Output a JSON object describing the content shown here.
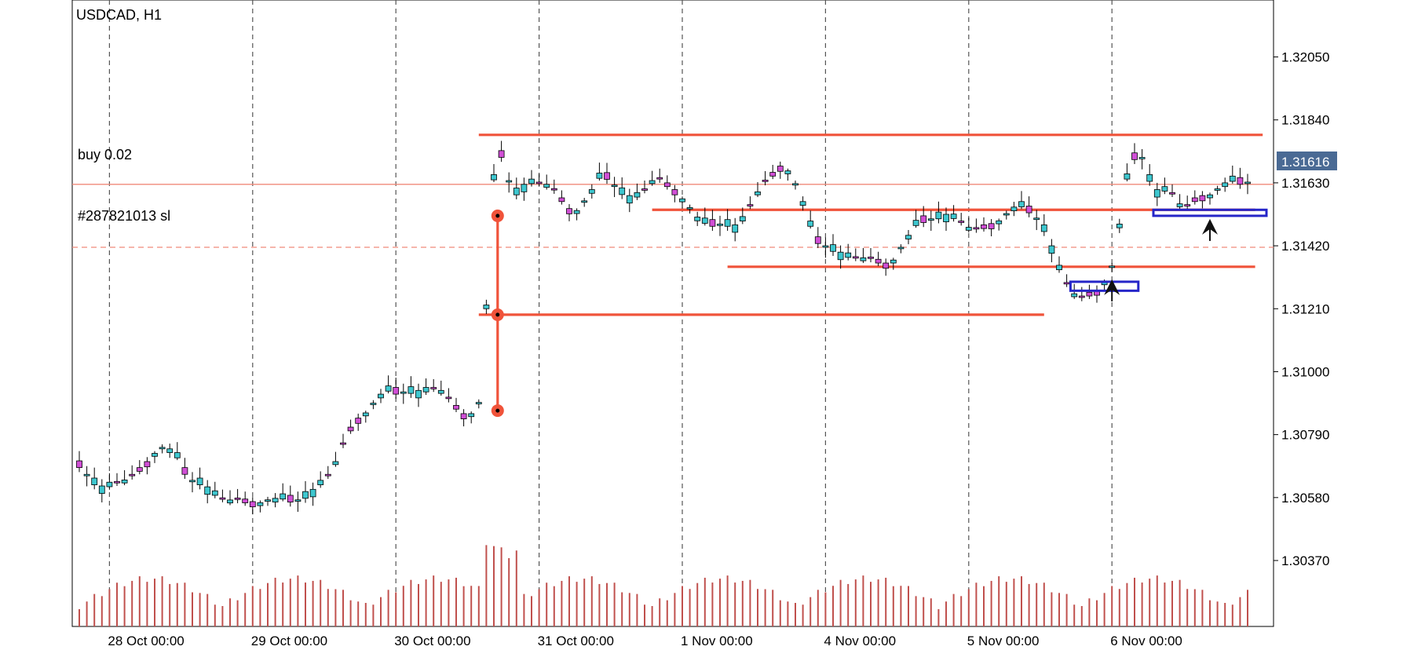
{
  "symbol": "USDCAD, H1",
  "order_labels": {
    "buy": "buy 0.02",
    "sl": "#287821013 sl"
  },
  "current_price": "1.31616",
  "colors": {
    "bull_body": "#3ec7cf",
    "bear_body": "#d14fd6",
    "wick": "#000000",
    "volume": "#c0504d",
    "level_lines": "#f0533a",
    "box": "#2525c8",
    "price_tag_bg": "#4a6a94",
    "order_line": "#f08a7a"
  },
  "chart_data": {
    "type": "candlestick",
    "title": "USDCAD, H1",
    "ylim": [
      1.3015,
      1.3224
    ],
    "y_ticks": [
      "1.32050",
      "1.31840",
      "1.31630",
      "1.31420",
      "1.31210",
      "1.31000",
      "1.30790",
      "1.30580",
      "1.30370"
    ],
    "x_ticks": [
      "28 Oct 00:00",
      "29 Oct 00:00",
      "30 Oct 00:00",
      "31 Oct 00:00",
      "1 Nov 00:00",
      "4 Nov 00:00",
      "5 Nov 00:00",
      "6 Nov 00:00"
    ],
    "grid": "vertical-dashed",
    "horizontal_levels": [
      1.3179,
      1.3154,
      1.3135,
      1.3119
    ],
    "order_levels": {
      "buy": 1.31625,
      "sl": 1.31415
    },
    "measure_points": [
      1.3152,
      1.3119,
      1.3087
    ],
    "zones": [
      {
        "from": 1.313,
        "to": 1.3127
      },
      {
        "from": 1.3154,
        "to": 1.3152
      }
    ],
    "candle_shapes": [
      [
        0.7,
        -0.2,
        1.1,
        -0.4
      ],
      [
        -0.1,
        0.1,
        0.9,
        -1.2
      ],
      [
        -0.1,
        0.8,
        1.2,
        -0.4
      ],
      [
        -0.7,
        0.3,
        0.7,
        -1.0
      ],
      [
        0.1,
        0.7,
        1.0,
        -0.2
      ],
      [
        0.7,
        0.5,
        0.9,
        0.2
      ],
      [
        0.4,
        0.8,
        1.1,
        0.1
      ],
      [
        0.9,
        0.7,
        1.0,
        0.3
      ],
      [
        0.6,
        0.1,
        0.8,
        -0.2
      ],
      [
        0.1,
        -0.6,
        0.4,
        -0.8
      ],
      [
        -0.6,
        -0.2,
        -0.1,
        -0.7
      ],
      [
        -0.1,
        0.1,
        0.2,
        -0.4
      ],
      [
        -0.2,
        0.3,
        0.5,
        -0.5
      ],
      [
        0.2,
        0.9,
        1.2,
        0.1
      ]
    ],
    "candle_count": 156,
    "volume": "histogram, bottom pane"
  }
}
